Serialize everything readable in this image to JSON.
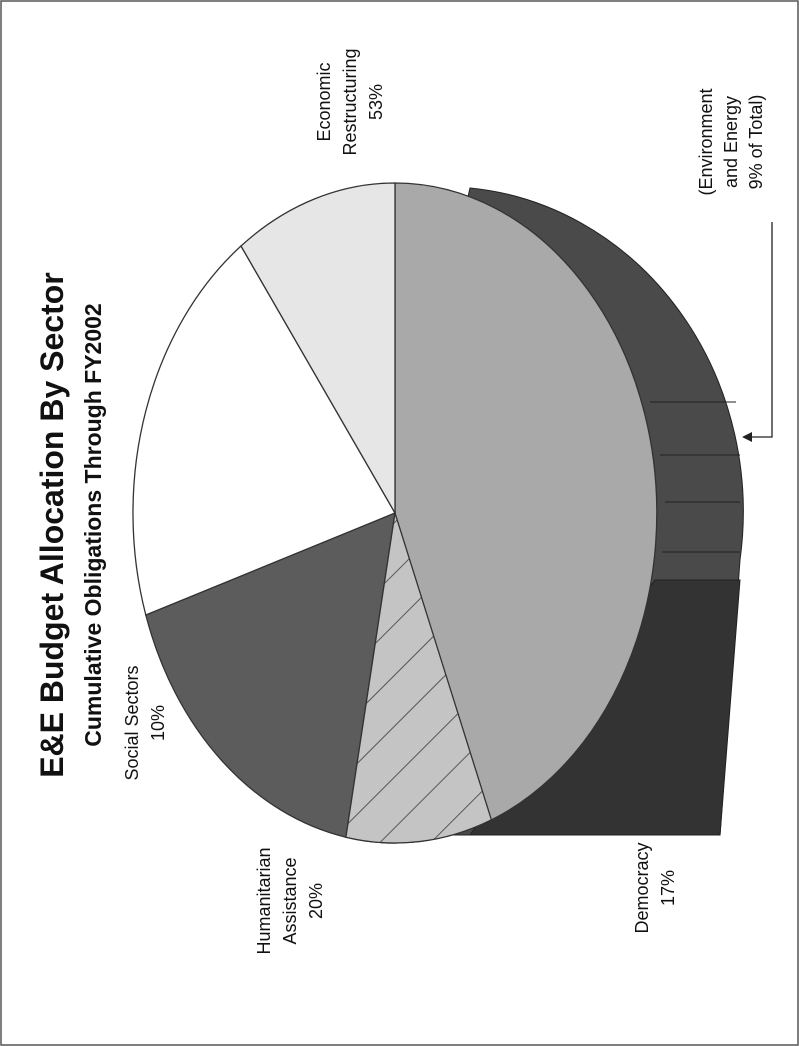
{
  "chart_data": {
    "type": "pie",
    "title": "E&E Budget Allocation By Sector",
    "subtitle": "Cumulative Obligations Through FY2002",
    "slices": [
      {
        "name": "Economic Restructuring",
        "value": 53,
        "label": [
          "Economic",
          "Restructuring",
          "53%"
        ],
        "color": "#a9a9a9"
      },
      {
        "name": "Democracy",
        "value": 17,
        "label": [
          "Democracy",
          "17%"
        ],
        "color": "#5c5c5c"
      },
      {
        "name": "Humanitarian Assistance",
        "value": 20,
        "label": [
          "Humanitarian",
          "Assistance",
          "20%"
        ],
        "color": "#ffffff"
      },
      {
        "name": "Social Sectors",
        "value": 10,
        "label": [
          "Social Sectors",
          "10%"
        ],
        "color": "#e6e6e6"
      }
    ],
    "annotation": [
      "(Environment",
      "and Energy",
      "9% of Total)"
    ]
  }
}
